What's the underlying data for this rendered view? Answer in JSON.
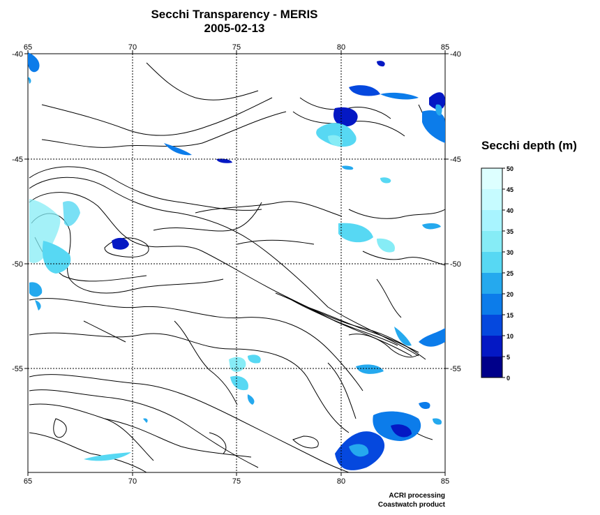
{
  "title": "Secchi Transparency - MERIS",
  "date": "2005-02-13",
  "legend": {
    "title": "Secchi depth (m)",
    "ticks": [
      "50",
      "45",
      "40",
      "35",
      "30",
      "25",
      "20",
      "15",
      "10",
      "5",
      "0"
    ],
    "colors": [
      "#f2ffff",
      "#ddffff",
      "#c6fbff",
      "#a8f4ff",
      "#86ecf6",
      "#57d8f3",
      "#25a9ee",
      "#0c7cea",
      "#0548de",
      "#0418c4",
      "#00008a"
    ]
  },
  "map": {
    "lon_ticks": [
      "65",
      "70",
      "75",
      "80",
      "85"
    ],
    "lat_ticks": [
      "-40",
      "-45",
      "-50",
      "-55"
    ],
    "lon_range": [
      65,
      85
    ],
    "lat_range": [
      -60,
      -40
    ],
    "grid": "dotted"
  },
  "credits": {
    "line1": "ACRI processing",
    "line2": "Coastwatch product"
  }
}
